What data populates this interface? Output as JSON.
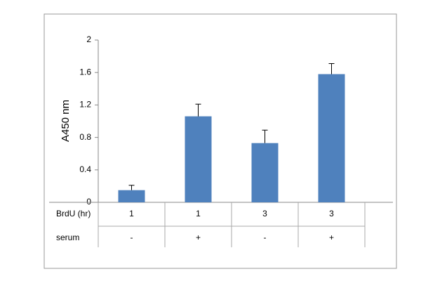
{
  "chart_data": {
    "type": "bar",
    "ylabel": "A450 nm",
    "category_rows": [
      {
        "label": "BrdU (hr)",
        "cells": [
          "1",
          "1",
          "3",
          "3"
        ]
      },
      {
        "label": "serum",
        "cells": [
          "-",
          "+",
          "-",
          "+"
        ]
      }
    ],
    "values": [
      0.15,
      1.06,
      0.73,
      1.58
    ],
    "errors": [
      0.06,
      0.15,
      0.16,
      0.13
    ],
    "color": "#4f81bd",
    "ylim": [
      0,
      2
    ],
    "yticks": [
      0,
      0.4,
      0.8,
      1.2,
      1.6,
      2
    ],
    "grid": false
  }
}
